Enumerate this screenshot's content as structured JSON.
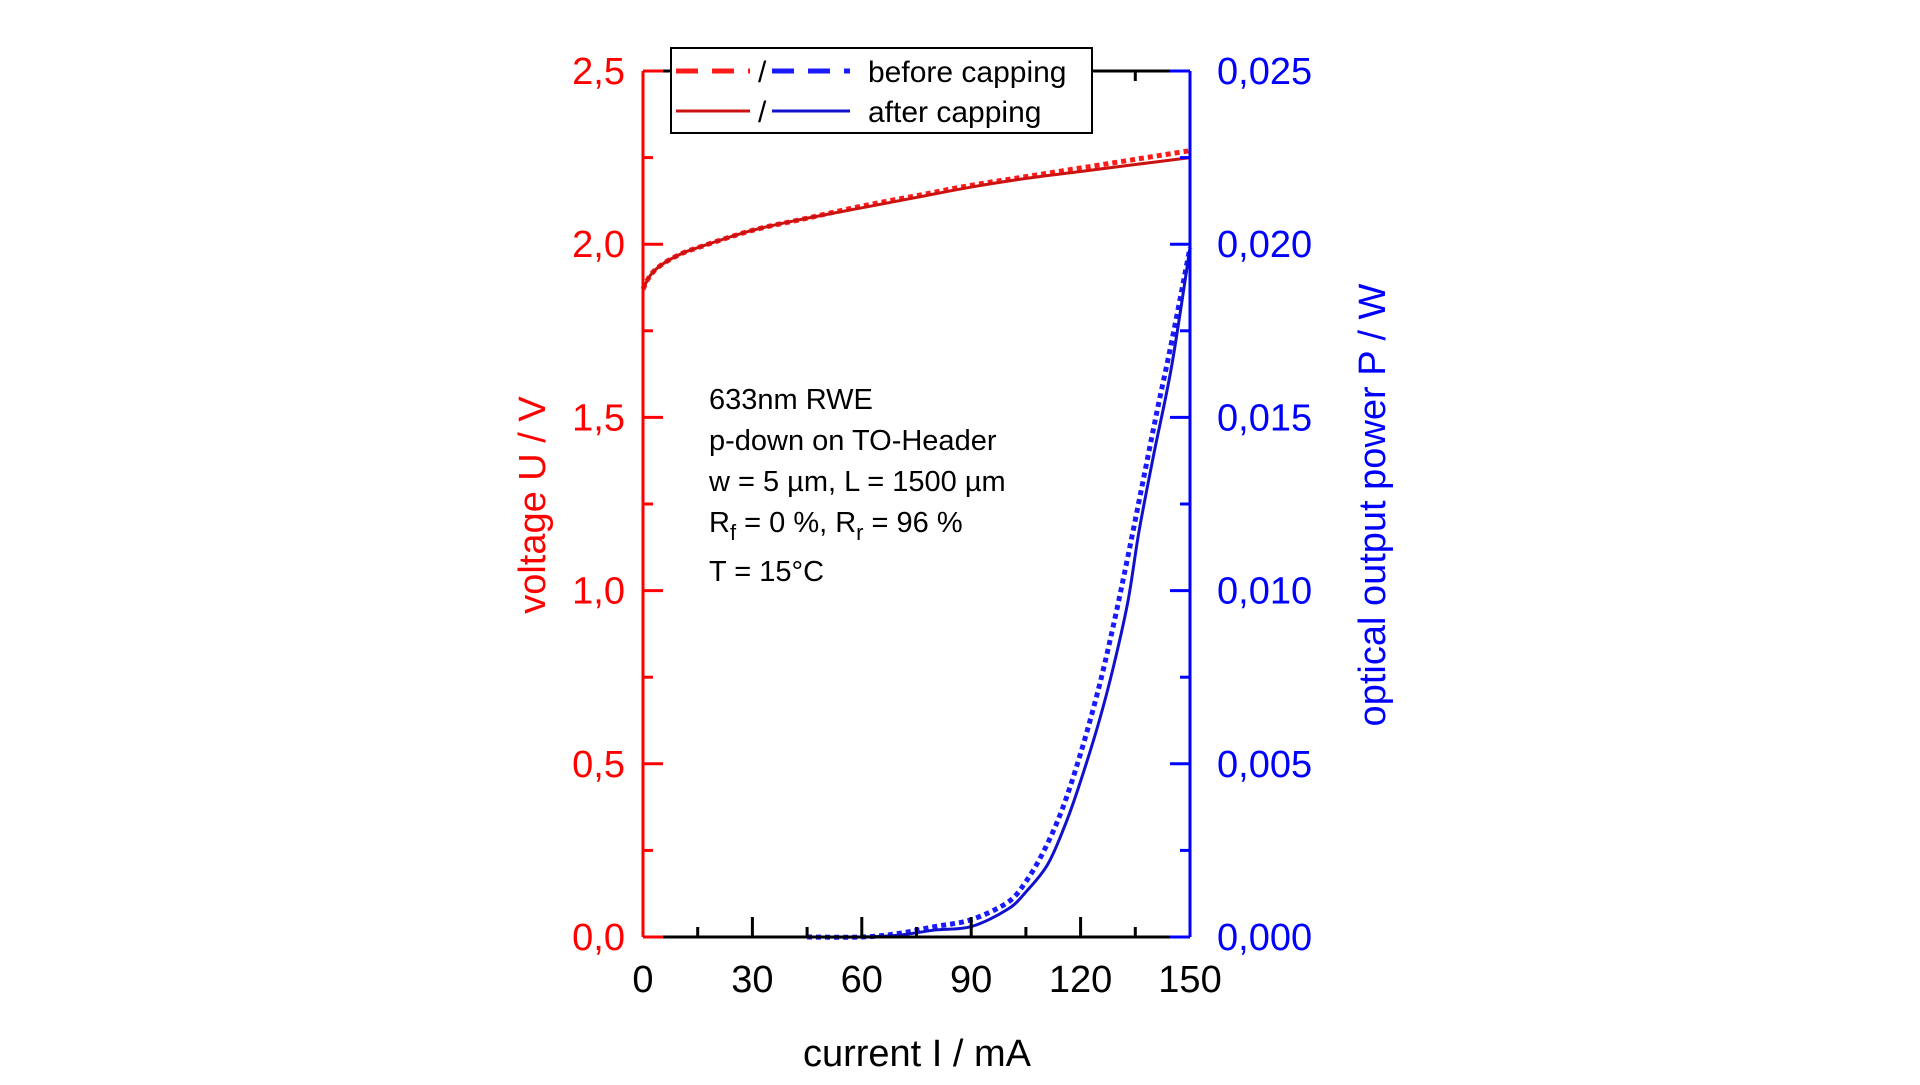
{
  "chart_data": {
    "type": "line",
    "xlabel": "current I / mA",
    "ylabel_left": "voltage U / V",
    "ylabel_right": "optical output power P / W",
    "xlim": [
      0,
      150
    ],
    "ylim_left": [
      0,
      2.5
    ],
    "ylim_right": [
      0,
      0.025
    ],
    "x_ticks": [
      "0",
      "30",
      "60",
      "90",
      "120",
      "150"
    ],
    "y_left_ticks": [
      "0,0",
      "0,5",
      "1,0",
      "1,5",
      "2,0",
      "2,5"
    ],
    "y_right_ticks": [
      "0,000",
      "0,005",
      "0,010",
      "0,015",
      "0,020",
      "0,025"
    ],
    "grid": false,
    "legend_placement": "top",
    "legend": [
      {
        "separator": "/",
        "label": "before capping",
        "style": "dashed"
      },
      {
        "separator": "/",
        "label": "after capping",
        "style": "solid"
      }
    ],
    "annotation": [
      "633nm RWE",
      "p-down on TO-Header",
      "w = 5 µm, L = 1500 µm",
      "Rf = 0 %, Rr = 96 %",
      "T = 15°C"
    ],
    "colors": {
      "voltage_before": "#ff1a1a",
      "voltage_after": "#cc1111",
      "power_before": "#1a1aff",
      "power_after": "#1111cc",
      "left_axis": "#ff0000",
      "right_axis": "#0000ff"
    },
    "series": [
      {
        "axis": "left",
        "style": "dashed",
        "x": [
          0,
          2,
          5,
          10,
          15,
          30,
          45,
          60,
          75,
          90,
          105,
          120,
          135,
          150
        ],
        "y": [
          1.87,
          1.91,
          1.94,
          1.97,
          1.99,
          2.04,
          2.075,
          2.11,
          2.14,
          2.17,
          2.195,
          2.22,
          2.245,
          2.27
        ]
      },
      {
        "axis": "left",
        "style": "solid",
        "x": [
          0,
          2,
          5,
          10,
          15,
          30,
          45,
          60,
          75,
          90,
          105,
          120,
          135,
          150
        ],
        "y": [
          1.87,
          1.91,
          1.94,
          1.97,
          1.99,
          2.04,
          2.075,
          2.105,
          2.135,
          2.165,
          2.19,
          2.21,
          2.23,
          2.25
        ]
      },
      {
        "axis": "right",
        "style": "dashed",
        "x": [
          45,
          60,
          70,
          80,
          90,
          100,
          105,
          110,
          115,
          120,
          125,
          129,
          133,
          137,
          141,
          145,
          150
        ],
        "y": [
          0,
          0,
          0.0001,
          0.0003,
          0.0005,
          0.001,
          0.0016,
          0.0025,
          0.0037,
          0.0053,
          0.0072,
          0.009,
          0.011,
          0.0131,
          0.0152,
          0.0172,
          0.0199
        ]
      },
      {
        "axis": "right",
        "style": "solid",
        "x": [
          45,
          60,
          70,
          80,
          90,
          100,
          105,
          111,
          116,
          120,
          125,
          129,
          133,
          136,
          140,
          145,
          150
        ],
        "y": [
          0,
          0,
          5e-05,
          0.0002,
          0.0003,
          0.0008,
          0.0013,
          0.0021,
          0.0033,
          0.0045,
          0.0062,
          0.0078,
          0.0097,
          0.0117,
          0.0139,
          0.0165,
          0.0199
        ]
      }
    ]
  }
}
